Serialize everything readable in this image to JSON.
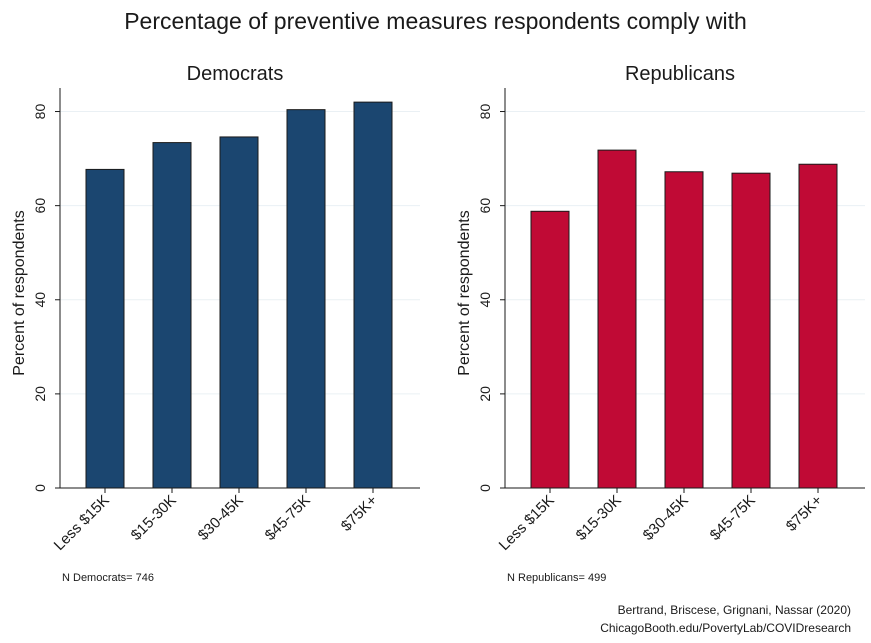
{
  "title": "Percentage of preventive measures respondents comply with",
  "chart_data": [
    {
      "type": "bar",
      "title": "Democrats",
      "ylabel": "Percent of respondents",
      "xlabel": "",
      "categories": [
        "Less $15K",
        "$15-30K",
        "$30-45K",
        "$45-75K",
        "$75K+"
      ],
      "values": [
        67.7,
        73.4,
        74.6,
        80.4,
        82.0
      ],
      "ylim": [
        0,
        85
      ],
      "yticks": [
        0,
        20,
        40,
        60,
        80
      ],
      "color": "#1b4670",
      "grid": true,
      "note": "N Democrats= 746"
    },
    {
      "type": "bar",
      "title": "Republicans",
      "ylabel": "Percent of respondents",
      "xlabel": "",
      "categories": [
        "Less $15K",
        "$15-30K",
        "$30-45K",
        "$45-75K",
        "$75K+"
      ],
      "values": [
        58.8,
        71.8,
        67.2,
        66.9,
        68.8
      ],
      "ylim": [
        0,
        85
      ],
      "yticks": [
        0,
        20,
        40,
        60,
        80
      ],
      "color": "#c00a35",
      "grid": true,
      "note": "N Republicans= 499"
    }
  ],
  "credit": {
    "line1": "Bertrand, Briscese, Grignani, Nassar (2020)",
    "line2": "ChicagoBooth.edu/PovertyLab/COVIDresearch"
  }
}
